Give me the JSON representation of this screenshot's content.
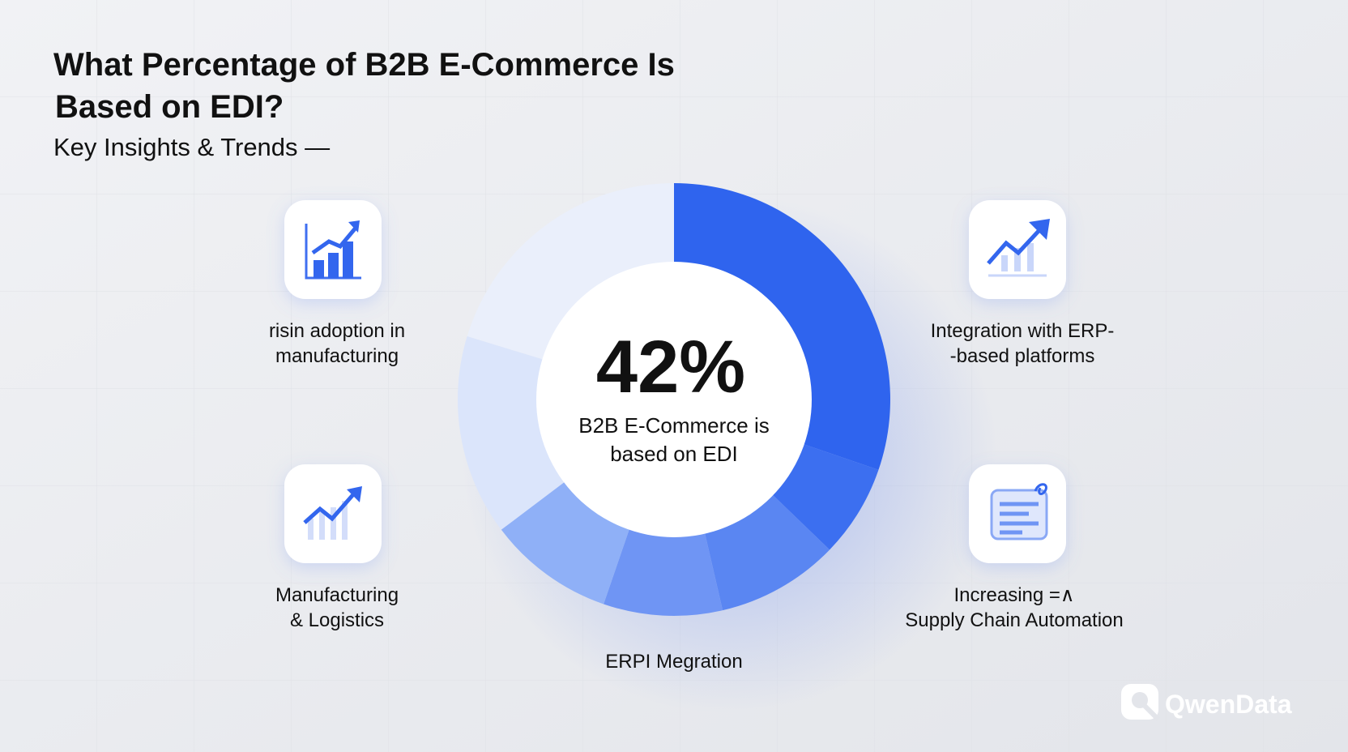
{
  "header": {
    "title_line1": "What Percentage of B2B E-Commerce Is",
    "title_line2": "Based on EDI?",
    "subtitle": "Key Insights & Trends —"
  },
  "center": {
    "stat": "42%",
    "caption_line1": "B2B E-Commerce is",
    "caption_line2": "based on EDI"
  },
  "callouts": [
    {
      "line1": "risin adoption in",
      "line2": "manufacturing"
    },
    {
      "line1": "Integration with ERP-",
      "line2": "-based platforms"
    },
    {
      "line1": "Manufacturing",
      "line2": "& Logistics"
    },
    {
      "line1": "Increasing =∧",
      "line2": "Supply Chain Automation"
    }
  ],
  "bottom_label": "ERPI Megration",
  "brand": "QwenData"
}
